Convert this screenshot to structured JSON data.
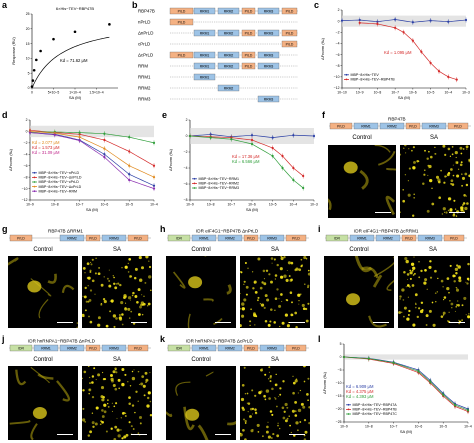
{
  "panels": {
    "a": {
      "label": "a",
      "title": "6×His−TEV−RBP47B",
      "ylabel": "Response (RU)",
      "xlabel": "SA (M)",
      "kd": "Kd = 71.62 μM"
    },
    "b": {
      "label": "b",
      "constructs": [
        "RBP47B",
        "nPrLD",
        "ΔnPrLD",
        "cPrLD",
        "ΔcPrLD",
        "RRM",
        "RRM1",
        "RRM2",
        "RRM3"
      ]
    },
    "c": {
      "label": "c",
      "ylabel": "ΔFnorm (‰)",
      "xlabel": "SA (M)",
      "kd": "Kd = 1.095 μM",
      "legend": [
        "MBP−8×His−TEV",
        "MBP−8×His−TEV−RBP47B"
      ]
    },
    "d": {
      "label": "d",
      "ylabel": "ΔFnorm (‰)",
      "xlabel": "SA (M)",
      "kds": [
        "Kd = 2.077 μM",
        "Kd = 1.573 μM",
        "Kd = 31.09 μM"
      ],
      "legend": [
        "MBP−8×His−TEV−nPrLD",
        "MBP−8×His−TEV−ΔnPrLD",
        "MBP−8×His−TEV−cPrLD",
        "MBP−8×His−TEV−ΔcPrLD",
        "MBP−8×His−TEV−RRM"
      ]
    },
    "e": {
      "label": "e",
      "ylabel": "ΔFnorm (‰)",
      "xlabel": "SA (M)",
      "kds": [
        "Kd = 17.36 μM",
        "Kd = 6.566 μM"
      ],
      "legend": [
        "MBP−8×His−TEV−RRM1",
        "MBP−8×His−TEV−RRM2",
        "MBP−8×His−TEV−RRM3"
      ]
    },
    "f": {
      "label": "f",
      "construct": "RBP47B",
      "control": "Control",
      "sa": "SA"
    },
    "g": {
      "label": "g",
      "construct": "RBP47B ΔRRM1",
      "control": "Control",
      "sa": "SA"
    },
    "h": {
      "label": "h",
      "construct": "IDR eIF4G1−RBP47B ΔnPrLD",
      "control": "Control",
      "sa": "SA"
    },
    "i": {
      "label": "i",
      "construct": "IDR eIF4G1−RBP47B ΔcRRM1",
      "control": "Control",
      "sa": "SA"
    },
    "j": {
      "label": "j",
      "construct": "IDR hnRNPA1−RBP47B ΔnPrLD",
      "control": "Control",
      "sa": "SA"
    },
    "k": {
      "label": "k",
      "construct": "IDR hnRNPA1−RBP47B ΔcPrLD",
      "control": "Control",
      "sa": "SA"
    },
    "l": {
      "label": "l",
      "ylabel": "ΔFnorm (‰)",
      "xlabel": "SA (M)",
      "kds": [
        "Kd = 6.909 μM",
        "Kd = 4.375 μM",
        "Kd = 4.393 μM"
      ],
      "legend": [
        "MBP−8×His−TEV−RBP47A",
        "MBP−8×His−TEV−RBP47B",
        "MBP−8×His−TEV−RBP47C"
      ]
    }
  },
  "domains": {
    "prld": "PrLD",
    "rrm1": "RRM1",
    "rrm2": "RRM2",
    "rrm3": "RRM3",
    "idr": "IDR"
  },
  "colors": {
    "blue": "#2b3fa5",
    "red": "#d42a2a",
    "green": "#2f9e3a",
    "orange": "#e08a1e",
    "purple": "#8a2fb0",
    "magenta": "#c02a8c",
    "prld": "#f4b183",
    "rrm": "#9dc3e6",
    "idr": "#c6e0a4"
  },
  "chart_data": [
    {
      "panel": "a",
      "type": "scatter",
      "title": "6×His−TEV−RBP47B",
      "xlabel": "SA (M)",
      "ylabel": "Response (RU)",
      "xlim": [
        0,
        0.0002
      ],
      "ylim": [
        0,
        25
      ],
      "x_ticks": [
        "0",
        "5×10−5",
        "1×10−4",
        "1.5×10−4"
      ],
      "y_ticks": [
        "0",
        "5",
        "10",
        "15",
        "20",
        "25"
      ],
      "series": [
        {
          "values_x": [
            0,
            2e-06,
            5e-06,
            1e-05,
            2e-05,
            5e-05,
            0.0001,
            0.00018
          ],
          "values_y": [
            0.5,
            2.5,
            6,
            9.5,
            12.5,
            16.5,
            19,
            21.5
          ]
        }
      ]
    },
    {
      "panel": "c",
      "type": "scatter",
      "xlabel": "SA (M)",
      "ylabel": "ΔFnorm (‰)",
      "xscale": "log",
      "xlim": [
        1e-10,
        0.001
      ],
      "ylim": [
        -12,
        2
      ],
      "x_ticks": [
        "10−10",
        "10−9",
        "10−8",
        "10−7",
        "10−6",
        "10−5",
        "10−4",
        "10−3"
      ],
      "y_ticks": [
        "2",
        "0",
        "−2",
        "−4",
        "−6",
        "−8",
        "−10",
        "−12"
      ],
      "series": [
        {
          "name": "MBP−8×His−TEV",
          "x": [
            1e-10,
            1e-09,
            1e-08,
            1e-07,
            1e-06,
            1e-05,
            0.0001,
            0.001
          ],
          "y": [
            0.1,
            0.2,
            -0.1,
            0.3,
            -0.2,
            0.1,
            -0.1,
            0.2
          ]
        },
        {
          "name": "MBP−8×His−TEV−RBP47B",
          "x": [
            1e-09,
            1e-08,
            1e-07,
            3e-07,
            1e-06,
            3e-06,
            1e-05,
            3e-05,
            0.0001,
            0.0003
          ],
          "y": [
            -0.3,
            -0.5,
            -1.2,
            -2,
            -3.5,
            -5.5,
            -7.5,
            -9,
            -10,
            -10.5
          ]
        }
      ]
    },
    {
      "panel": "d",
      "type": "scatter",
      "xlabel": "SA (M)",
      "ylabel": "ΔFnorm (‰)",
      "xscale": "log",
      "xlim": [
        1e-09,
        0.0001
      ],
      "ylim": [
        -12,
        2
      ],
      "x_ticks": [
        "10−9",
        "10−8",
        "10−7",
        "10−6",
        "10−5",
        "10−4"
      ],
      "y_ticks": [
        "2",
        "0",
        "−2",
        "−4",
        "−6",
        "−8",
        "−10",
        "−12"
      ],
      "series": [
        {
          "name": "MBP−8×His−TEV−nPrLD",
          "x": [
            1e-09,
            1e-08,
            1e-07,
            1e-06,
            1e-05,
            0.0001
          ],
          "y": [
            -0.2,
            -0.5,
            -1.5,
            -4,
            -7.5,
            -9.5
          ]
        },
        {
          "name": "MBP−8×His−TEV−ΔnPrLD",
          "x": [
            1e-09,
            1e-08,
            1e-07,
            1e-06,
            1e-05,
            0.0001
          ],
          "y": [
            0.2,
            -0.2,
            -0.5,
            -1.5,
            -3.5,
            -6
          ]
        },
        {
          "name": "MBP−8×His−TEV−cPrLD",
          "x": [
            1e-09,
            1e-08,
            1e-07,
            1e-06,
            1e-05,
            0.0001
          ],
          "y": [
            -0.1,
            -0.1,
            -0.2,
            -0.4,
            -1,
            -2
          ]
        },
        {
          "name": "MBP−8×His−TEV−ΔcPrLD",
          "x": [
            1e-09,
            1e-08,
            1e-07,
            1e-06,
            1e-05,
            0.0001
          ],
          "y": [
            0,
            -0.3,
            -1,
            -3,
            -6,
            -8
          ]
        },
        {
          "name": "MBP−8×His−TEV−RRM",
          "x": [
            1e-09,
            1e-08,
            1e-07,
            1e-06,
            1e-05,
            0.0001
          ],
          "y": [
            -0.2,
            -0.6,
            -1.6,
            -4.5,
            -8.5,
            -10
          ]
        }
      ]
    },
    {
      "panel": "e",
      "type": "scatter",
      "xlabel": "SA (M)",
      "ylabel": "ΔFnorm (‰)",
      "xscale": "log",
      "xlim": [
        1e-09,
        0.001
      ],
      "ylim": [
        -8,
        2
      ],
      "x_ticks": [
        "10−9",
        "10−8",
        "10−7",
        "10−6",
        "10−5",
        "10−4",
        "10−3"
      ],
      "y_ticks": [
        "2",
        "0",
        "−2",
        "−4",
        "−6",
        "−8"
      ],
      "series": [
        {
          "name": "MBP−8×His−TEV−RRM1",
          "x": [
            1e-09,
            1e-08,
            1e-07,
            1e-06,
            1e-05,
            0.0001,
            0.001
          ],
          "y": [
            0,
            0.2,
            -0.1,
            0.1,
            -0.2,
            0.1,
            0
          ]
        },
        {
          "name": "MBP−8×His−TEV−RRM2",
          "x": [
            1e-09,
            1e-08,
            1e-07,
            1e-06,
            1e-05,
            3e-05,
            0.0001,
            0.0003
          ],
          "y": [
            0,
            -0.1,
            -0.2,
            -0.5,
            -1.5,
            -2.5,
            -4,
            -5
          ]
        },
        {
          "name": "MBP−8×His−TEV−RRM3",
          "x": [
            1e-09,
            1e-08,
            1e-07,
            1e-06,
            1e-05,
            3e-05,
            0.0001,
            0.0003
          ],
          "y": [
            0,
            -0.2,
            -0.4,
            -1,
            -2.5,
            -4,
            -5.5,
            -6.5
          ]
        }
      ]
    },
    {
      "panel": "l",
      "type": "scatter",
      "xlabel": "SA (M)",
      "ylabel": "ΔFnorm (‰)",
      "xscale": "log",
      "xlim": [
        1e-09,
        0.0001
      ],
      "ylim": [
        -25,
        5
      ],
      "x_ticks": [
        "10−9",
        "10−8",
        "10−7",
        "10−6",
        "10−5",
        "10−4"
      ],
      "y_ticks": [
        "5",
        "0",
        "−5",
        "−10",
        "−15",
        "−20",
        "−25"
      ],
      "series": [
        {
          "name": "MBP−8×His−TEV−RBP47A",
          "x": [
            1e-09,
            1e-08,
            1e-07,
            1e-06,
            3e-06,
            1e-05,
            3e-05,
            0.0001
          ],
          "y": [
            0,
            -0.5,
            -2,
            -5,
            -9,
            -14,
            -18,
            -20
          ]
        },
        {
          "name": "MBP−8×His−TEV−RBP47B",
          "x": [
            1e-09,
            1e-08,
            1e-07,
            1e-06,
            3e-06,
            1e-05,
            3e-05,
            0.0001
          ],
          "y": [
            0,
            -0.8,
            -2.5,
            -6,
            -10,
            -15,
            -19,
            -21
          ]
        },
        {
          "name": "MBP−8×His−TEV−RBP47C",
          "x": [
            1e-09,
            1e-08,
            1e-07,
            1e-06,
            3e-06,
            1e-05,
            3e-05,
            0.0001
          ],
          "y": [
            0,
            -0.6,
            -2.2,
            -5.5,
            -9.5,
            -14.5,
            -18.5,
            -20.5
          ]
        }
      ]
    }
  ]
}
